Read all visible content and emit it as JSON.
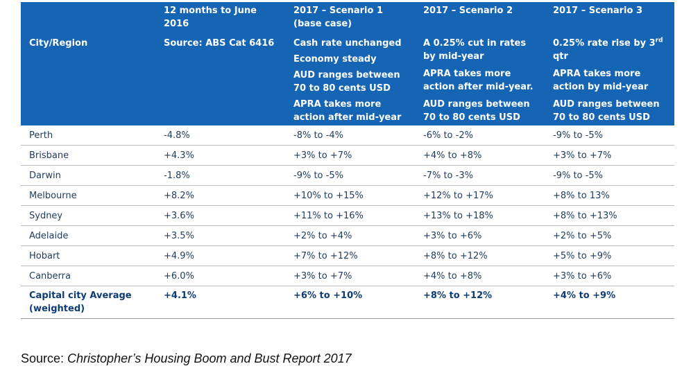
{
  "table": {
    "header_top": {
      "col0": "",
      "col1": "12 months to June 2016",
      "col2": "2017 – Scenario 1 (base case)",
      "col3": "2017 – Scenario 2",
      "col4": "2017 – Scenario 3"
    },
    "header_second": {
      "col0": "City/Region",
      "col1": "Source: ABS Cat 6416",
      "col2": [
        "Cash rate unchanged",
        "Economy steady",
        "AUD ranges between 70 to 80 cents USD",
        "APRA takes more action after mid-year"
      ],
      "col3": [
        "A 0.25% cut in rates by mid-year",
        "APRA takes more action after mid-year.",
        "AUD ranges between 70 to 80 cents USD"
      ],
      "col4": {
        "p1_before": "0.25% rate rise by 3",
        "p1_sup": "rd",
        "p1_after": " qtr",
        "p2": "APRA takes more action by mid-year",
        "p3": "AUD ranges between 70 to 80 cents USD"
      }
    },
    "rows": [
      {
        "city": "Perth",
        "year2016": "-4.8%",
        "s1": "-8% to -4%",
        "s2": "-6% to -2%",
        "s3": "-9% to -5%"
      },
      {
        "city": "Brisbane",
        "year2016": "+4.3%",
        "s1": "+3% to +7%",
        "s2": "+4% to +8%",
        "s3": "+3% to +7%"
      },
      {
        "city": "Darwin",
        "year2016": "-1.8%",
        "s1": "-9% to -5%",
        "s2": "-7% to -3%",
        "s3": "-9% to -5%"
      },
      {
        "city": "Melbourne",
        "year2016": "+8.2%",
        "s1": "+10% to +15%",
        "s2": "+12% to +17%",
        "s3": "+8% to 13%"
      },
      {
        "city": "Sydney",
        "year2016": "+3.6%",
        "s1": "+11% to +16%",
        "s2": "+13% to +18%",
        "s3": "+8% to +13%"
      },
      {
        "city": "Adelaide",
        "year2016": "+3.5%",
        "s1": "+2% to +4%",
        "s2": "+3% to +6%",
        "s3": "+2% to +5%"
      },
      {
        "city": "Hobart",
        "year2016": "+4.9%",
        "s1": "+7% to +12%",
        "s2": "+8% to +12%",
        "s3": "+5% to +9%"
      },
      {
        "city": "Canberra",
        "year2016": "+6.0%",
        "s1": "+3% to +7%",
        "s2": "+4% to +8%",
        "s3": "+3% to +6%"
      }
    ],
    "average": {
      "city": "Capital city Average (weighted)",
      "year2016": "+4.1%",
      "s1": "+6% to +10%",
      "s2": "+8% to +12%",
      "s3": "+4% to +9%"
    }
  },
  "caption": {
    "prefix": "Source: ",
    "title": "Christopher’s Housing Boom and Bust Report 2017"
  },
  "colors": {
    "header_bg": "#1565b4",
    "header_text": "#ffffff",
    "body_text": "#1e3a5a",
    "row_border": "#bcbcbc"
  }
}
